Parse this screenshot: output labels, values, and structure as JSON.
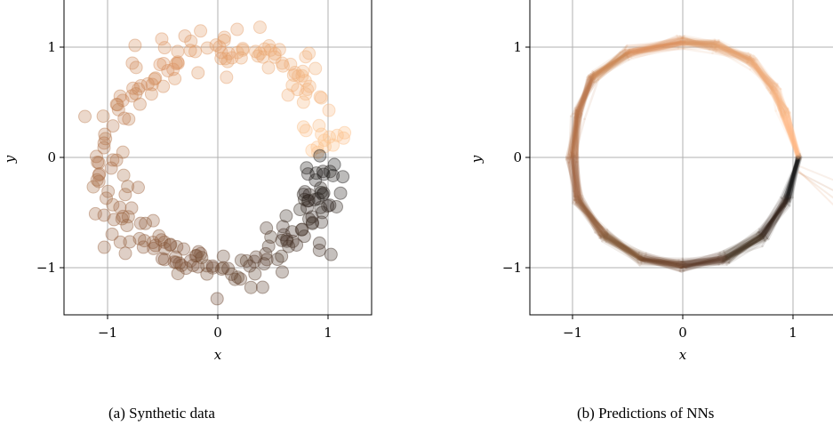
{
  "chart_data": [
    {
      "type": "scatter",
      "caption": "(a) Synthetic data",
      "xlabel": "x",
      "ylabel": "y",
      "xlim": [
        -1.4,
        1.4
      ],
      "ylim": [
        -1.4,
        1.4
      ],
      "xticks": [
        {
          "value": -1,
          "label": "−1"
        },
        {
          "value": 0,
          "label": "0"
        },
        {
          "value": 1,
          "label": "1"
        }
      ],
      "yticks": [
        {
          "value": 1,
          "label": "1"
        },
        {
          "value": 0,
          "label": "0"
        },
        {
          "value": -1,
          "label": "−1"
        }
      ],
      "grid": true,
      "colormap": [
        "#ffc48c",
        "#d9915f",
        "#8a5a3c",
        "#1a1a1a"
      ],
      "n_points": 260,
      "marker_alpha": 0.3
    },
    {
      "type": "line",
      "caption": "(b) Predictions of NNs",
      "xlabel": "x",
      "ylabel": "y",
      "xlim": [
        -1.4,
        1.4
      ],
      "ylim": [
        -1.4,
        1.4
      ],
      "xticks": [
        {
          "value": -1,
          "label": "−1"
        },
        {
          "value": 0,
          "label": "0"
        },
        {
          "value": 1,
          "label": "1"
        }
      ],
      "yticks": [
        {
          "value": 1,
          "label": "1"
        },
        {
          "value": 0,
          "label": "0"
        },
        {
          "value": -1,
          "label": "−1"
        }
      ],
      "grid": true,
      "colormap": [
        "#ffc48c",
        "#d9915f",
        "#8a5a3c",
        "#1a1a1a"
      ],
      "curve_vertices": [
        [
          1.05,
          0.0
        ],
        [
          0.95,
          -0.38
        ],
        [
          0.72,
          -0.72
        ],
        [
          0.38,
          -0.92
        ],
        [
          0.0,
          -0.98
        ],
        [
          -0.38,
          -0.92
        ],
        [
          -0.72,
          -0.7
        ],
        [
          -0.95,
          -0.38
        ],
        [
          -1.0,
          0.0
        ],
        [
          -0.95,
          0.4
        ],
        [
          -0.82,
          0.72
        ],
        [
          -0.5,
          0.95
        ],
        [
          0.0,
          1.05
        ],
        [
          0.3,
          1.02
        ],
        [
          0.62,
          0.88
        ],
        [
          0.82,
          0.62
        ],
        [
          0.92,
          0.4
        ],
        [
          1.05,
          0.0
        ]
      ],
      "n_curves": 60,
      "line_alpha": 0.12
    }
  ]
}
